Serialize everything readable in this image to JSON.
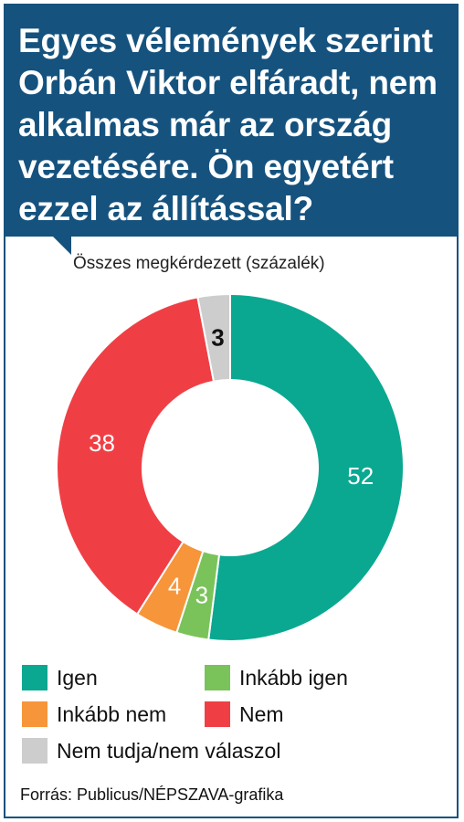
{
  "header": {
    "title_lines": [
      "Egyes vélemények szerint",
      "Orbán Viktor elfáradt, nem",
      "alkalmas már az ország",
      "vezetésére. Ön egyetért",
      "ezzel az állítással?"
    ]
  },
  "subtitle": "Összes megkérdezett (százalék)",
  "source": "Forrás: Publicus/NÉPSZAVA-grafika",
  "colors": {
    "header_bg": "#15527e",
    "igen": "#0aa891",
    "inkabb_igen": "#7ac35b",
    "inkabb_nem": "#f7953a",
    "nem": "#ef3f45",
    "nem_tudja": "#cdcdcd"
  },
  "chart_data": {
    "type": "pie",
    "variant": "donut",
    "title": "Összes megkérdezett (százalék)",
    "slices": [
      {
        "label": "Igen",
        "value": 52,
        "color": "#0aa891"
      },
      {
        "label": "Inkább igen",
        "value": 3,
        "color": "#7ac35b"
      },
      {
        "label": "Inkább nem",
        "value": 4,
        "color": "#f7953a"
      },
      {
        "label": "Nem",
        "value": 38,
        "color": "#ef3f45"
      },
      {
        "label": "Nem tudja/nem válaszol",
        "value": 3,
        "color": "#cdcdcd"
      }
    ],
    "legend": [
      {
        "label": "Igen",
        "color": "#0aa891"
      },
      {
        "label": "Inkább igen",
        "color": "#7ac35b"
      },
      {
        "label": "Inkább nem",
        "color": "#f7953a"
      },
      {
        "label": "Nem",
        "color": "#ef3f45"
      },
      {
        "label": "Nem tudja/nem válaszol",
        "color": "#cdcdcd"
      }
    ],
    "legend_position": "bottom"
  }
}
